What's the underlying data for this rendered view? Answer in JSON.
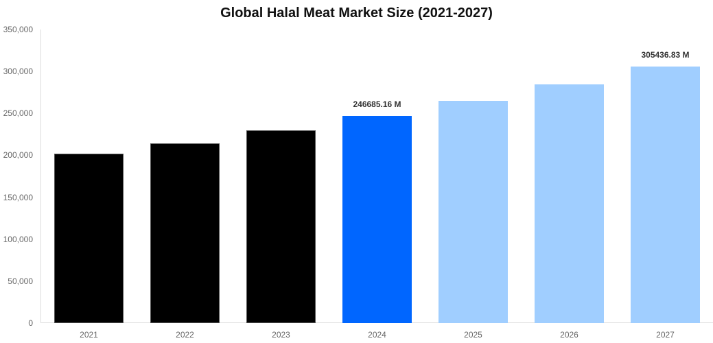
{
  "chart_data": {
    "type": "bar",
    "title": "Global Halal Meat Market Size (2021-2027)",
    "xlabel": "",
    "ylabel": "",
    "ylim": [
      0,
      350000
    ],
    "yticks": [
      "0",
      "50,000",
      "100,000",
      "150,000",
      "200,000",
      "250,000",
      "300,000",
      "350,000"
    ],
    "categories": [
      "2021",
      "2022",
      "2023",
      "2024",
      "2025",
      "2026",
      "2027"
    ],
    "values": [
      201900,
      214500,
      229500,
      246685.16,
      265200,
      284900,
      305436.83
    ],
    "colors": [
      "#000000",
      "#000000",
      "#000000",
      "#0066FF",
      "#A0CEFF",
      "#A0CEFF",
      "#A0CEFF"
    ],
    "data_labels": [
      {
        "index": 3,
        "text": "246685.16 M"
      },
      {
        "index": 6,
        "text": "305436.83 M"
      }
    ],
    "grid": false,
    "legend": null
  }
}
